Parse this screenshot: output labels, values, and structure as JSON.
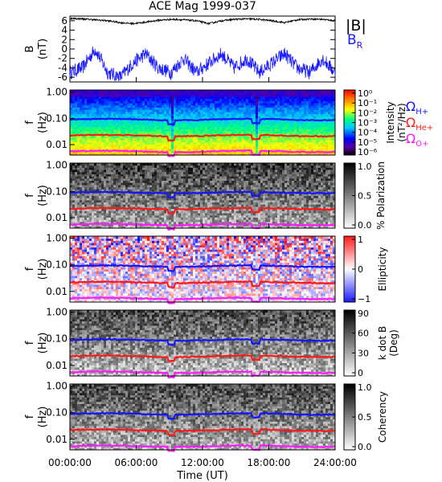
{
  "title": "ACE Mag 1999-037",
  "colors": {
    "bmag": "#000000",
    "br": "#1a1aff",
    "h": "#1414ff",
    "he": "#ff1a1a",
    "o": "#ff1aff"
  },
  "chart_data": [
    {
      "type": "line",
      "panel": "B",
      "ylabel": [
        "B",
        "(nT)"
      ],
      "yticks": [
        "6",
        "4",
        "2",
        "0",
        "-2",
        "-4",
        "-6"
      ],
      "ylim": [
        -7,
        7
      ],
      "series": [
        {
          "name": "|B|",
          "values_sampled": [
            6.5,
            6.4,
            6.2,
            6.0,
            5.6,
            5.4,
            5.7,
            6.1,
            6.3,
            6.2,
            6.0,
            5.4,
            6.0,
            6.3,
            6.4,
            6.3,
            6.0,
            5.6,
            6.2,
            6.4,
            6.3,
            6.0
          ]
        },
        {
          "name": "B_R",
          "values_sampled": [
            -5,
            -4,
            0,
            -5,
            -6,
            -3,
            -1,
            -4,
            -5,
            -2,
            -5,
            -3,
            -1,
            -4,
            -2,
            -5,
            -3,
            -1,
            -4,
            -5,
            -2,
            -5
          ]
        }
      ]
    },
    {
      "type": "heatmap",
      "panel": "Intensity",
      "ylabel": [
        "f",
        "(Hz)"
      ],
      "yticks": [
        "1.00",
        "0.10",
        "0.01"
      ],
      "yscale": "log",
      "ylim": [
        0.004,
        1.2
      ],
      "colorbar": {
        "label": [
          "Intensity",
          "(nT²/Hz)"
        ],
        "ticks": [
          "10⁰",
          "10⁻¹",
          "10⁻²",
          "10⁻³",
          "10⁻⁴",
          "10⁻⁵",
          "10⁻⁶"
        ],
        "scale": "rainbow"
      }
    },
    {
      "type": "heatmap",
      "panel": "Polarization",
      "ylabel": [
        "f",
        "(Hz)"
      ],
      "yticks": [
        "1.00",
        "0.10",
        "0.01"
      ],
      "yscale": "log",
      "colorbar": {
        "label": [
          "% Polarization"
        ],
        "ticks": [
          "1.0",
          "0.5",
          "0.0"
        ],
        "scale": "gray"
      }
    },
    {
      "type": "heatmap",
      "panel": "Ellipticity",
      "ylabel": [
        "f",
        "(Hz)"
      ],
      "yticks": [
        "1.00",
        "0.10",
        "0.01"
      ],
      "yscale": "log",
      "colorbar": {
        "label": [
          "Ellipticity"
        ],
        "ticks": [
          "1",
          "0",
          "−1"
        ],
        "scale": "bwr"
      }
    },
    {
      "type": "heatmap",
      "panel": "k dot B",
      "ylabel": [
        "f",
        "(Hz)"
      ],
      "yticks": [
        "1.00",
        "0.10",
        "0.01"
      ],
      "yscale": "log",
      "colorbar": {
        "label": [
          "k dot B",
          "(Deg)"
        ],
        "ticks": [
          "90",
          "60",
          "30",
          "0"
        ],
        "scale": "gray"
      }
    },
    {
      "type": "heatmap",
      "panel": "Coherency",
      "ylabel": [
        "f",
        "(Hz)"
      ],
      "yticks": [
        "1.00",
        "0.10",
        "0.01"
      ],
      "yscale": "log",
      "colorbar": {
        "label": [
          "Coherency"
        ],
        "ticks": [
          "1.0",
          "0.5",
          "0.0"
        ],
        "scale": "gray"
      }
    }
  ],
  "gyrofrequency_labels": [
    {
      "symbol": "Ω",
      "sub": "H+"
    },
    {
      "symbol": "Ω",
      "sub": "He+"
    },
    {
      "symbol": "Ω",
      "sub": "O+"
    }
  ],
  "gyrofrequency_hz": {
    "H+": 0.09,
    "He+": 0.022,
    "O+": 0.0055
  },
  "b_legend": {
    "bmag": "|B|",
    "br_main": "B",
    "br_sub": "R"
  },
  "xaxis": {
    "ticks": [
      "00:00:00",
      "06:00:00",
      "12:00:00",
      "18:00:00",
      "24:00:00"
    ],
    "label": "Time (UT)"
  }
}
